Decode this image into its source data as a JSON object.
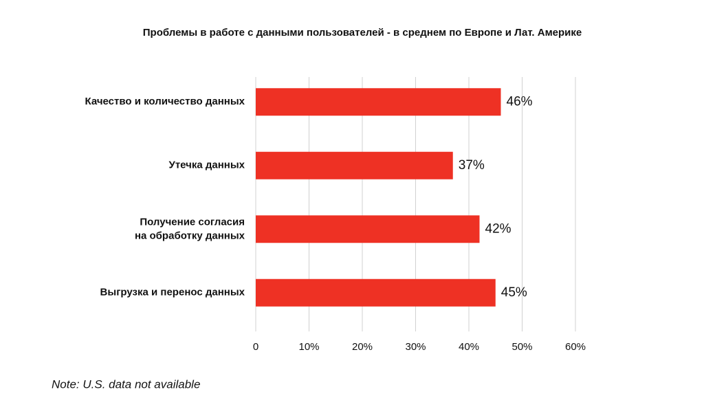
{
  "chart_data": {
    "type": "bar",
    "orientation": "horizontal",
    "title": "Проблемы в работе с данными пользователей - в среднем по Европе и Лат. Америке",
    "categories": [
      "Качество и количество данных",
      "Утечка данных",
      "Получение согласия\nна обработку данных",
      "Выгрузка и перенос данных"
    ],
    "values": [
      46,
      37,
      42,
      45
    ],
    "value_labels": [
      "46%",
      "37%",
      "42%",
      "45%"
    ],
    "color": "#ee3124",
    "xlim": [
      0,
      60
    ],
    "xticks": [
      0,
      {
        "value": 10,
        "label": "10%"
      },
      {
        "value": 20,
        "label": "20%"
      },
      {
        "value": 30,
        "label": "30%"
      },
      {
        "value": 40,
        "label": "40%"
      },
      {
        "value": 50,
        "label": "50%"
      },
      {
        "value": 60,
        "label": "60%"
      }
    ],
    "grid": true,
    "note": "Note: U.S. data not available"
  }
}
